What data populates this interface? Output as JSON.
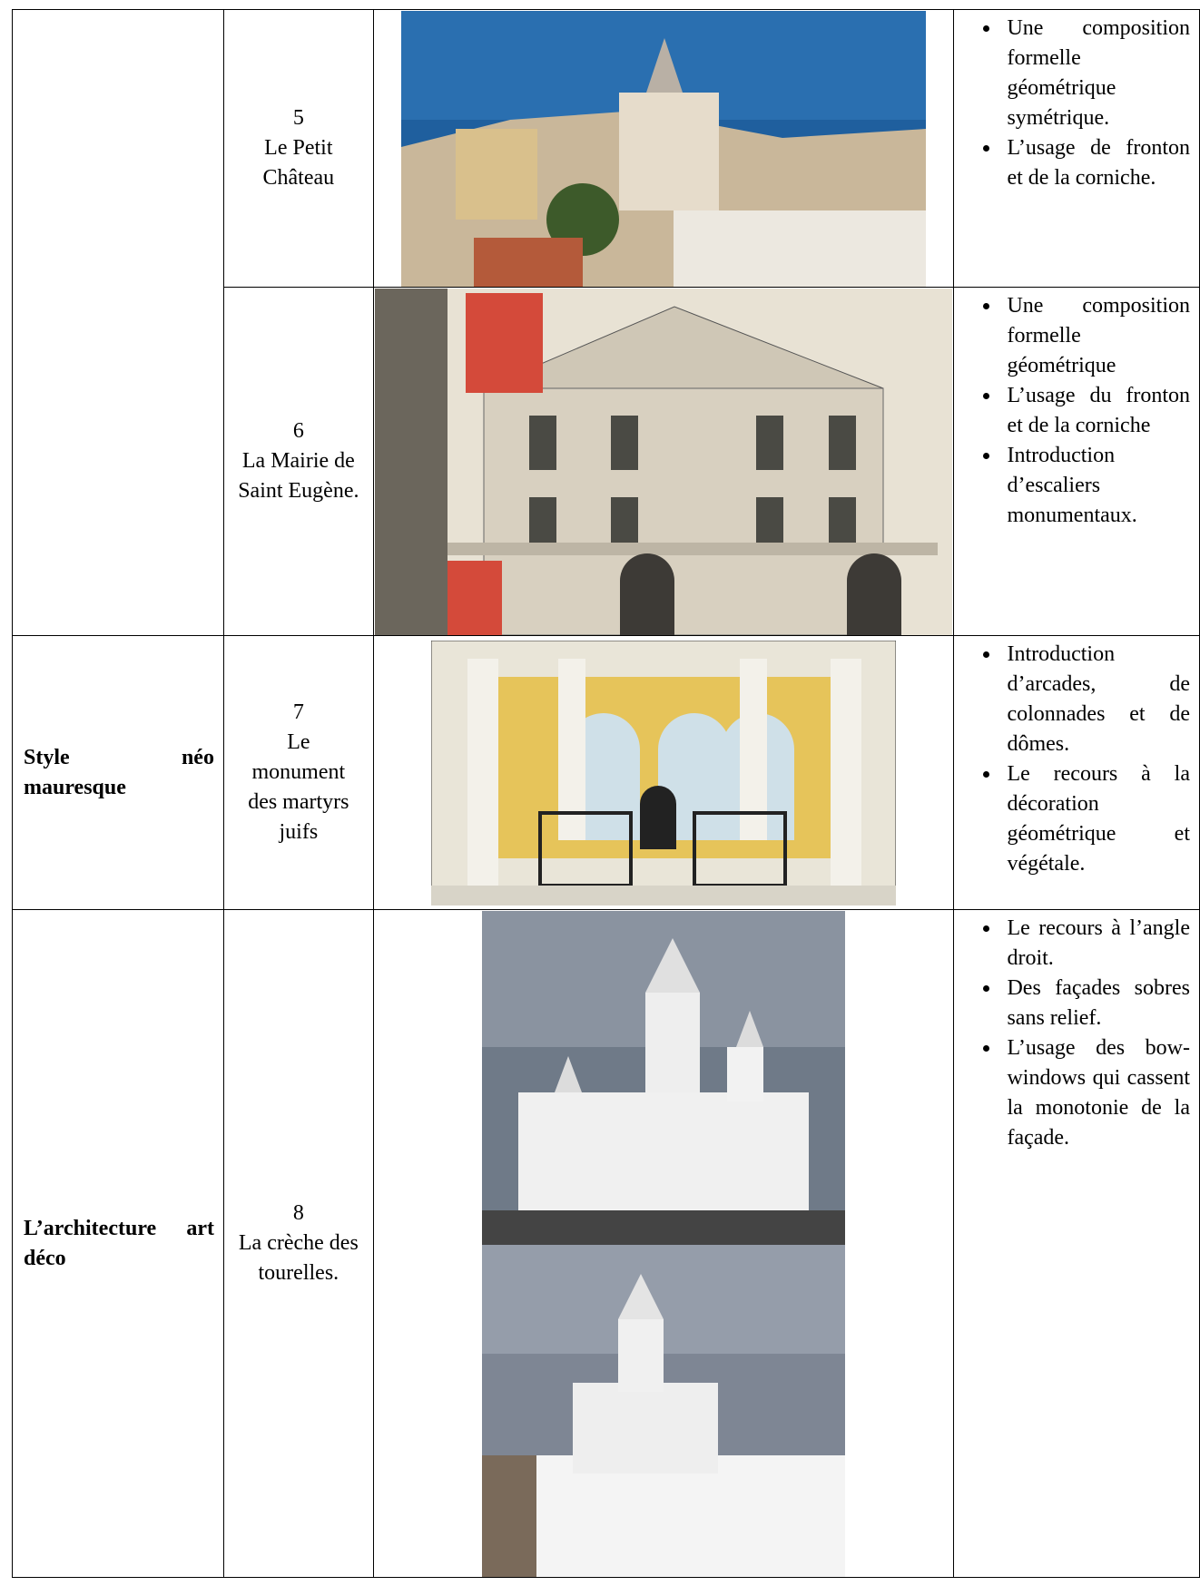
{
  "table": {
    "rows": [
      {
        "style": null,
        "number": "5",
        "name": "Le Petit Château",
        "features": [
          "Une composition formelle géométrique symétrique.",
          "L’usage de fronton et de la corniche."
        ]
      },
      {
        "style": null,
        "number": "6",
        "name": "La Mairie de Saint Eugène.",
        "features": [
          "Une composition formelle géométrique",
          "L’usage du fronton et de la corniche",
          "Introduction d’escaliers monumentaux."
        ]
      },
      {
        "style": "Style néo mauresque",
        "number": "7",
        "name": "Le monument des martyrs juifs",
        "features": [
          "Introduction d’arcades, de colonnades et de dômes.",
          "Le recours à la décoration géométrique et végétale."
        ]
      },
      {
        "style": "L’architecture art déco",
        "number": "8",
        "name": "La crèche des tourelles.",
        "features": [
          "Le recours à l’angle droit.",
          "Des façades sobres sans relief.",
          "L’usage des bow-windows qui cassent la monotonie de la façade."
        ]
      }
    ]
  }
}
